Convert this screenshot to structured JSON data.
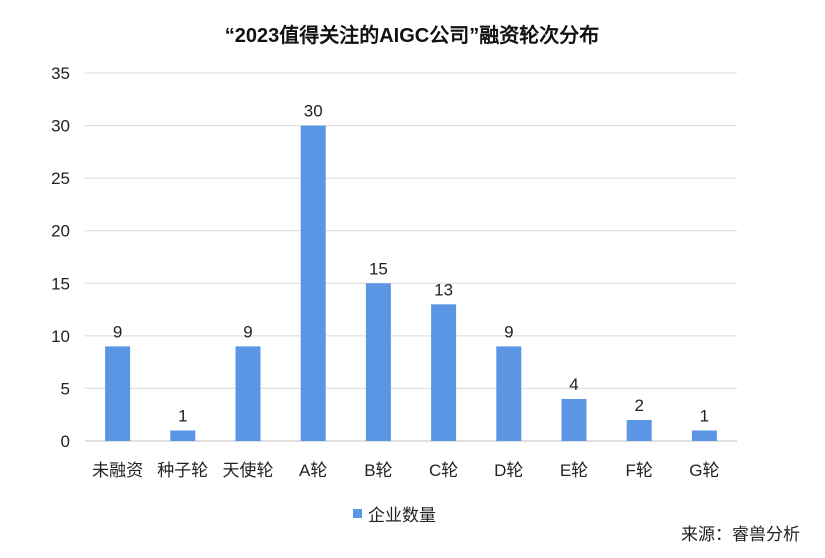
{
  "chart_data": {
    "type": "bar",
    "title": "“2023值得关注的AIGC公司”融资轮次分布",
    "categories": [
      "未融资",
      "种子轮",
      "天使轮",
      "A轮",
      "B轮",
      "C轮",
      "D轮",
      "E轮",
      "F轮",
      "G轮"
    ],
    "series": [
      {
        "name": "企业数量",
        "values": [
          9,
          1,
          9,
          30,
          15,
          13,
          9,
          4,
          2,
          1
        ]
      }
    ],
    "ylim": [
      0,
      35
    ],
    "yticks": [
      0,
      5,
      10,
      15,
      20,
      25,
      30,
      35
    ],
    "grid": true,
    "legend": "bottom",
    "data_labels": true,
    "color": "#5B96E5"
  },
  "source": "来源：睿兽分析"
}
